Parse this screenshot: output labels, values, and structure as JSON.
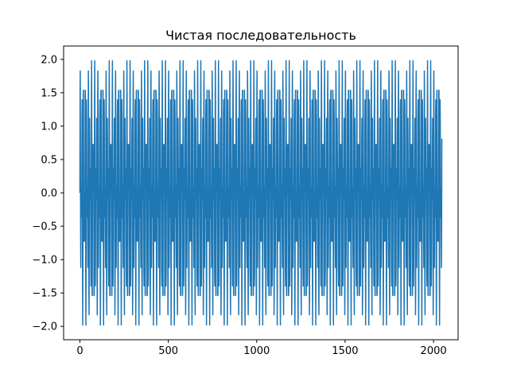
{
  "chart_data": {
    "type": "line",
    "title": "Чистая последовательность",
    "xlabel": "",
    "ylabel": "",
    "xlim": [
      -92,
      2139
    ],
    "ylim": [
      -2.2,
      2.2
    ],
    "x_ticks": [
      0,
      500,
      1000,
      1500,
      2000
    ],
    "x_tick_labels": [
      "0",
      "500",
      "1000",
      "1500",
      "2000"
    ],
    "y_ticks": [
      -2.0,
      -1.5,
      -1.0,
      -0.5,
      0.0,
      0.5,
      1.0,
      1.5,
      2.0
    ],
    "y_tick_labels": [
      "−2.0",
      "−1.5",
      "−1.0",
      "−0.5",
      "0.0",
      "0.5",
      "1.0",
      "1.5",
      "2.0"
    ],
    "grid": false,
    "series": [
      {
        "color": "#1f77b4",
        "sample_count": 2048,
        "generator": "sum of two sinusoids",
        "components": [
          {
            "amplitude": 1.0,
            "frequency": 0.11
          },
          {
            "amplitude": 1.0,
            "frequency": 0.17
          }
        ],
        "y_range": [
          -2.0,
          2.0
        ]
      }
    ]
  }
}
